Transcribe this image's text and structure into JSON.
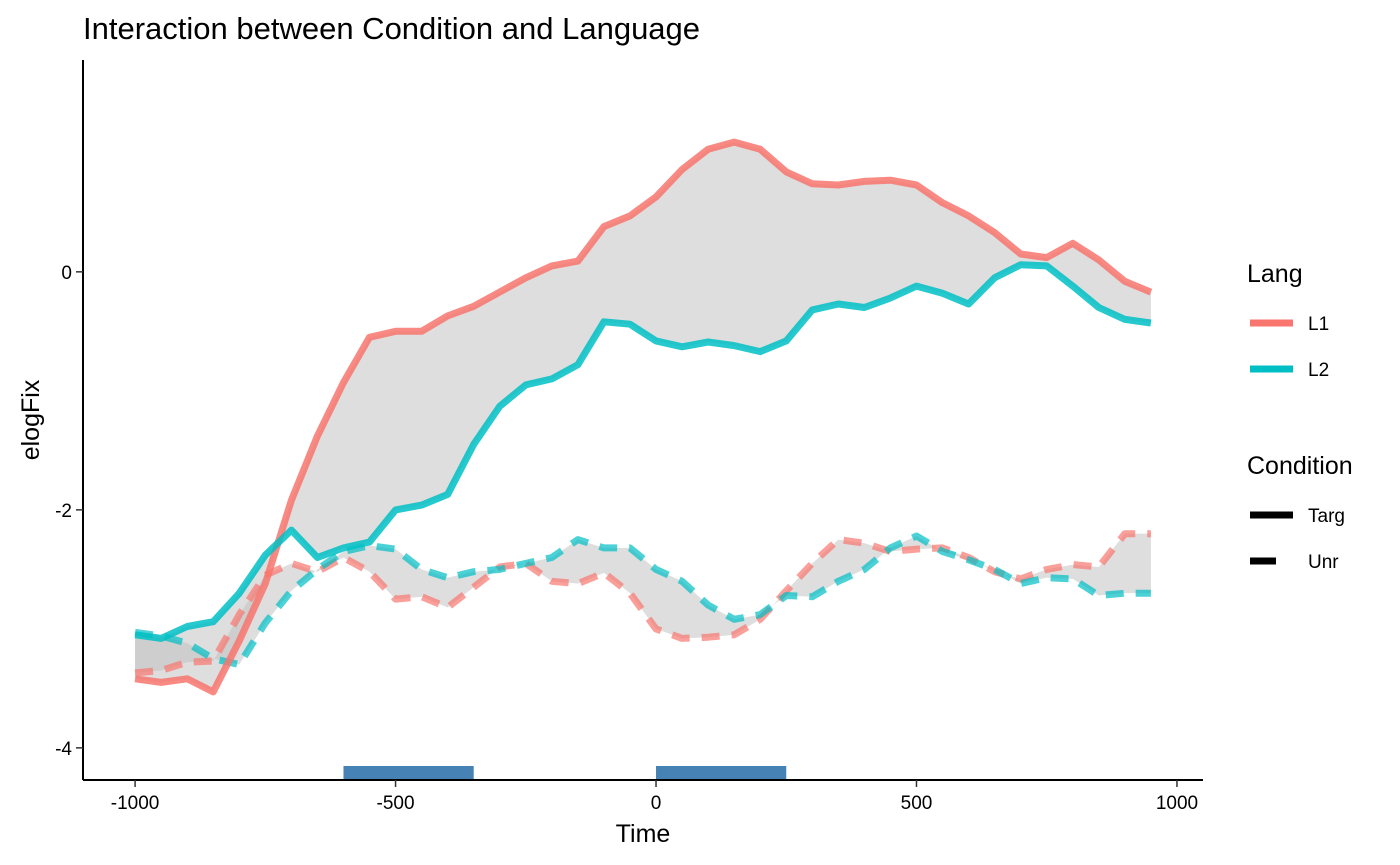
{
  "chart_data": {
    "type": "line",
    "title": "Interaction between Condition and Language",
    "xlabel": "Time",
    "ylabel": "elogFix",
    "xlim": [
      -1100,
      1050
    ],
    "ylim": [
      -4.27,
      1.78
    ],
    "x_ticks": [
      -1000,
      -500,
      0,
      500,
      1000
    ],
    "x_tick_labels": [
      "-1000",
      "-500",
      "0",
      "500",
      "1000"
    ],
    "y_ticks": [
      -4,
      -2,
      0
    ],
    "y_tick_labels": [
      "-4",
      "-2",
      "0"
    ],
    "grid": false,
    "legend_position": "right",
    "colors": {
      "L1": "#F8766D",
      "L2": "#00BFC4",
      "ribbon": "#bdbdbd",
      "bar": "#4682B4"
    },
    "legend": {
      "lang": {
        "title": "Lang",
        "items": [
          {
            "label": "L1",
            "color": "#F8766D"
          },
          {
            "label": "L2",
            "color": "#00BFC4"
          }
        ]
      },
      "condition": {
        "title": "Condition",
        "items": [
          {
            "label": "Targ",
            "linetype": "solid"
          },
          {
            "label": "Unr",
            "linetype": "dashed"
          }
        ]
      }
    },
    "x": [
      -1000,
      -950,
      -900,
      -850,
      -800,
      -750,
      -700,
      -650,
      -600,
      -550,
      -500,
      -450,
      -400,
      -350,
      -300,
      -250,
      -200,
      -150,
      -100,
      -50,
      0,
      50,
      100,
      150,
      200,
      250,
      300,
      350,
      400,
      450,
      500,
      550,
      600,
      650,
      700,
      750,
      800,
      850,
      900,
      950
    ],
    "series": [
      {
        "lang": "L1",
        "condition": "Targ",
        "values": [
          -3.42,
          -3.45,
          -3.42,
          -3.53,
          -3.1,
          -2.62,
          -1.92,
          -1.38,
          -0.93,
          -0.55,
          -0.5,
          -0.5,
          -0.37,
          -0.29,
          -0.17,
          -0.05,
          0.05,
          0.09,
          0.38,
          0.47,
          0.63,
          0.86,
          1.03,
          1.09,
          1.03,
          0.84,
          0.74,
          0.73,
          0.76,
          0.77,
          0.73,
          0.58,
          0.47,
          0.33,
          0.15,
          0.12,
          0.24,
          0.1,
          -0.08,
          -0.17
        ]
      },
      {
        "lang": "L2",
        "condition": "Targ",
        "values": [
          -3.05,
          -3.08,
          -2.98,
          -2.94,
          -2.7,
          -2.38,
          -2.17,
          -2.4,
          -2.32,
          -2.27,
          -2.0,
          -1.96,
          -1.87,
          -1.45,
          -1.13,
          -0.95,
          -0.9,
          -0.78,
          -0.42,
          -0.44,
          -0.58,
          -0.63,
          -0.59,
          -0.62,
          -0.67,
          -0.58,
          -0.32,
          -0.27,
          -0.3,
          -0.22,
          -0.12,
          -0.18,
          -0.27,
          -0.05,
          0.06,
          0.05,
          -0.12,
          -0.3,
          -0.4,
          -0.43
        ]
      },
      {
        "lang": "L1",
        "condition": "Unr",
        "values": [
          -3.37,
          -3.35,
          -3.28,
          -3.27,
          -2.88,
          -2.55,
          -2.45,
          -2.52,
          -2.4,
          -2.52,
          -2.75,
          -2.73,
          -2.82,
          -2.65,
          -2.48,
          -2.45,
          -2.6,
          -2.62,
          -2.53,
          -2.7,
          -3.0,
          -3.08,
          -3.07,
          -3.05,
          -2.92,
          -2.68,
          -2.45,
          -2.25,
          -2.28,
          -2.35,
          -2.33,
          -2.32,
          -2.4,
          -2.52,
          -2.58,
          -2.5,
          -2.46,
          -2.48,
          -2.2,
          -2.2
        ]
      },
      {
        "lang": "L2",
        "condition": "Unr",
        "values": [
          -3.03,
          -3.06,
          -3.12,
          -3.25,
          -3.3,
          -2.95,
          -2.68,
          -2.5,
          -2.35,
          -2.3,
          -2.33,
          -2.5,
          -2.57,
          -2.52,
          -2.5,
          -2.45,
          -2.4,
          -2.25,
          -2.32,
          -2.32,
          -2.5,
          -2.6,
          -2.8,
          -2.92,
          -2.88,
          -2.72,
          -2.73,
          -2.6,
          -2.5,
          -2.32,
          -2.22,
          -2.35,
          -2.42,
          -2.5,
          -2.62,
          -2.57,
          -2.58,
          -2.72,
          -2.7,
          -2.7
        ]
      }
    ],
    "bars": [
      {
        "x0": -600,
        "x1": -350
      },
      {
        "x0": 0,
        "x1": 250
      }
    ]
  }
}
